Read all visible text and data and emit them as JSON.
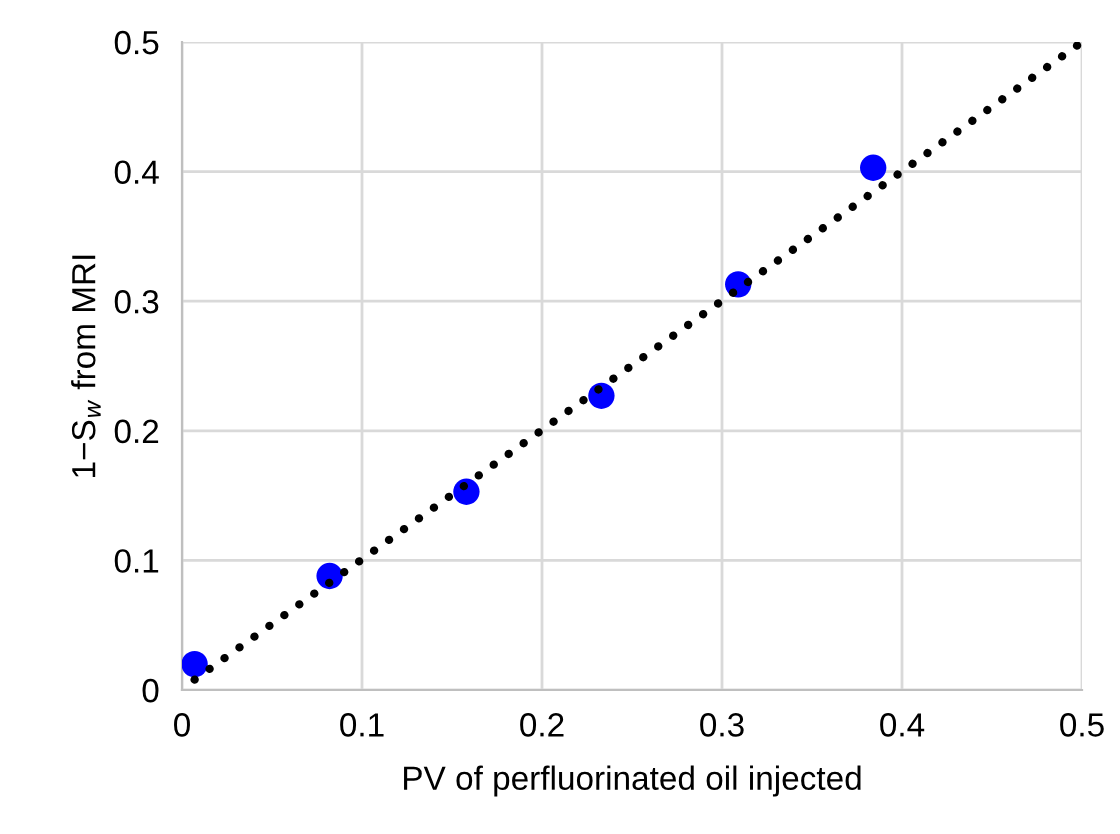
{
  "chart_data": {
    "type": "scatter",
    "xlabel": "PV of perfluorinated oil injected",
    "ylabel": "1−S$_{w}$ from MRI",
    "xlim": [
      0,
      0.5
    ],
    "ylim": [
      0,
      0.5
    ],
    "xticks": [
      0,
      0.1,
      0.2,
      0.3,
      0.4,
      0.5
    ],
    "yticks": [
      0,
      0.1,
      0.2,
      0.3,
      0.4,
      0.5
    ],
    "grid": true,
    "legend": false,
    "series": [
      {
        "color": "#0000ff",
        "marker": "circle",
        "x": [
          0.007,
          0.082,
          0.158,
          0.233,
          0.309,
          0.384
        ],
        "values": [
          0.02,
          0.088,
          0.153,
          0.227,
          0.313,
          0.403
        ]
      },
      {
        "type": "line",
        "color": "#000000",
        "line_style": "dotted",
        "marker": "none",
        "x": [
          0.007,
          0.5
        ],
        "values": [
          0.008,
          0.5
        ]
      }
    ]
  }
}
